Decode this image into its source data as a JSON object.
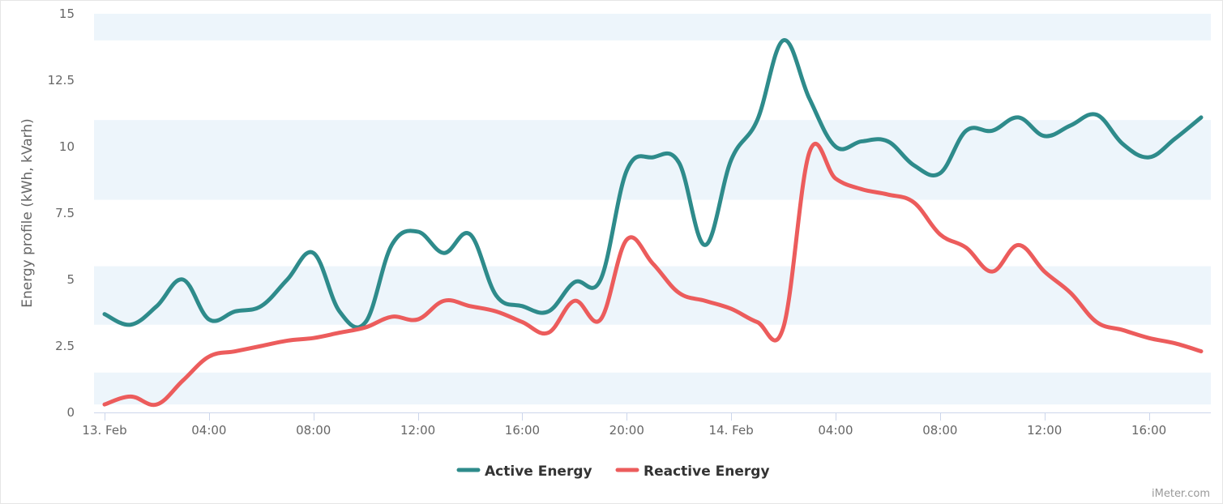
{
  "chart_data": {
    "type": "line",
    "title": "",
    "ylabel": "Energy profile (kWh, kVarh)",
    "xlabel": "",
    "ylim": [
      0,
      15
    ],
    "y_ticks": [
      "0",
      "2.5",
      "5",
      "7.5",
      "10",
      "12.5",
      "15"
    ],
    "y_tick_values": [
      0,
      2.5,
      5,
      7.5,
      10,
      12.5,
      15
    ],
    "x_range_hours": [
      0,
      42
    ],
    "x_ticks": [
      {
        "label": "13. Feb",
        "hour": 0
      },
      {
        "label": "04:00",
        "hour": 4
      },
      {
        "label": "08:00",
        "hour": 8
      },
      {
        "label": "12:00",
        "hour": 12
      },
      {
        "label": "16:00",
        "hour": 16
      },
      {
        "label": "20:00",
        "hour": 20
      },
      {
        "label": "14. Feb",
        "hour": 24
      },
      {
        "label": "04:00",
        "hour": 28
      },
      {
        "label": "08:00",
        "hour": 32
      },
      {
        "label": "12:00",
        "hour": 36
      },
      {
        "label": "16:00",
        "hour": 40
      }
    ],
    "bands": [
      [
        0.3,
        1.5
      ],
      [
        3.3,
        5.5
      ],
      [
        8.0,
        11.0
      ],
      [
        14.0,
        15.0
      ]
    ],
    "band_color": "#edf5fb",
    "grid": false,
    "legend_position": "bottom-center",
    "credit": "iMeter.com",
    "series": [
      {
        "name": "Active Energy",
        "color": "#2e8b8b",
        "x": [
          0,
          1,
          2,
          3,
          4,
          5,
          6,
          7,
          8,
          9,
          10,
          11,
          12,
          13,
          14,
          15,
          16,
          17,
          18,
          19,
          20,
          21,
          22,
          23,
          24,
          25,
          26,
          27,
          28,
          29,
          30,
          31,
          32,
          33,
          34,
          35,
          36,
          37,
          38,
          39,
          40,
          41,
          42
        ],
        "values": [
          3.7,
          3.3,
          4.0,
          5.0,
          3.5,
          3.8,
          4.0,
          5.0,
          6.0,
          3.8,
          3.4,
          6.3,
          6.8,
          6.0,
          6.7,
          4.4,
          4.0,
          3.8,
          4.9,
          5.0,
          9.1,
          9.6,
          9.4,
          6.3,
          9.5,
          11.0,
          14.0,
          11.8,
          10.0,
          10.2,
          10.2,
          9.3,
          9.0,
          10.6,
          10.6,
          11.1,
          10.4,
          10.8,
          11.2,
          10.1,
          9.6,
          10.3,
          11.1
        ]
      },
      {
        "name": "Reactive Energy",
        "color": "#ec5c5c",
        "x": [
          0,
          1,
          2,
          3,
          4,
          5,
          6,
          7,
          8,
          9,
          10,
          11,
          12,
          13,
          14,
          15,
          16,
          17,
          18,
          19,
          20,
          21,
          22,
          23,
          24,
          25,
          26,
          27,
          28,
          29,
          30,
          31,
          32,
          33,
          34,
          35,
          36,
          37,
          38,
          39,
          40,
          41,
          42
        ],
        "values": [
          0.3,
          0.6,
          0.3,
          1.2,
          2.1,
          2.3,
          2.5,
          2.7,
          2.8,
          3.0,
          3.2,
          3.6,
          3.5,
          4.2,
          4.0,
          3.8,
          3.4,
          3.0,
          4.2,
          3.5,
          6.5,
          5.6,
          4.5,
          4.2,
          3.9,
          3.4,
          3.2,
          9.8,
          8.8,
          8.4,
          8.2,
          7.9,
          6.7,
          6.2,
          5.3,
          6.3,
          5.3,
          4.5,
          3.4,
          3.1,
          2.8,
          2.6,
          2.3
        ]
      }
    ]
  }
}
